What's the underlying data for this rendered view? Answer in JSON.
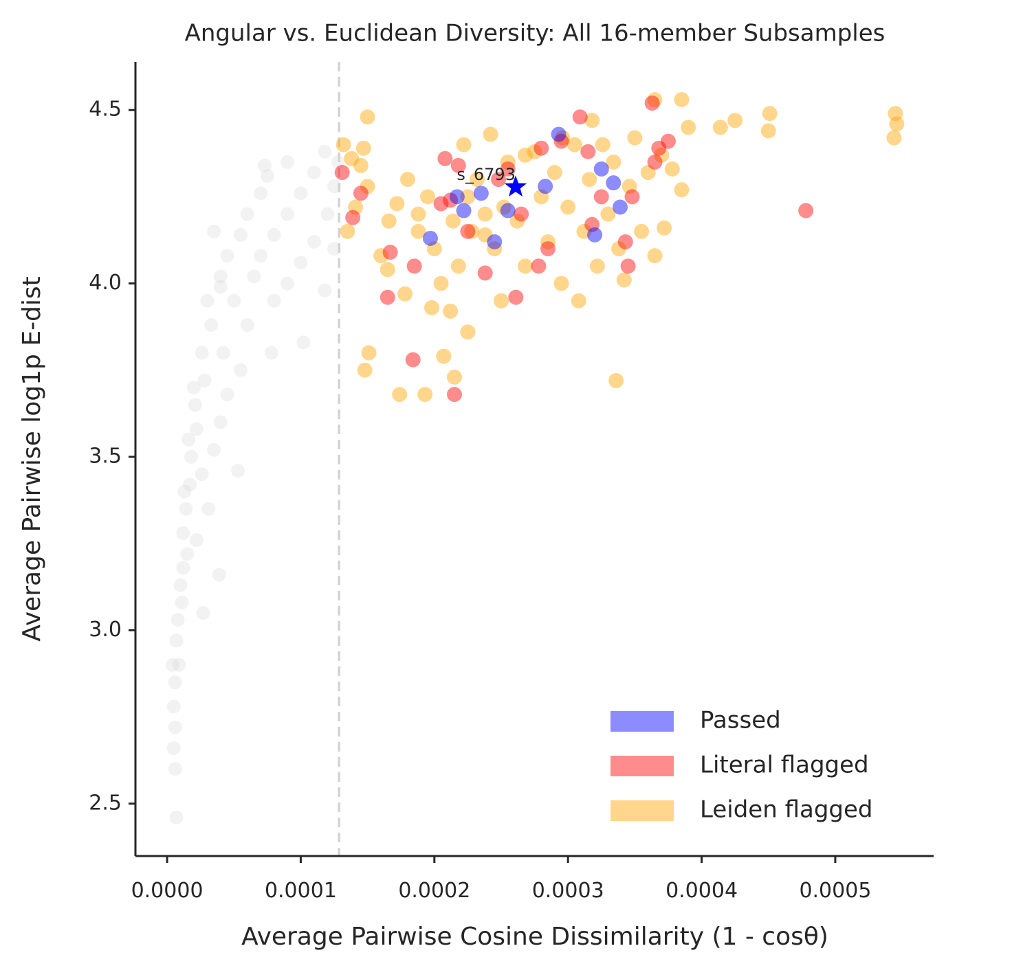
{
  "chart_data": {
    "type": "scatter",
    "title": "Angular vs. Euclidean Diversity: All 16-member Subsamples",
    "x_label": "Average Pairwise Cosine Dissimilarity (1 - cosθ)",
    "y_label": "Average Pairwise log1p E-dist",
    "xlim": [
      -2.37e-05,
      0.0005736
    ],
    "ylim": [
      2.349,
      4.639
    ],
    "xticks": [
      {
        "value": 0,
        "label": "0.0000"
      },
      {
        "value": 0.0001,
        "label": "0.0001"
      },
      {
        "value": 0.0002,
        "label": "0.0002"
      },
      {
        "value": 0.0003,
        "label": "0.0003"
      },
      {
        "value": 0.0004,
        "label": "0.0004"
      },
      {
        "value": 0.0005,
        "label": "0.0005"
      }
    ],
    "yticks": [
      2.5,
      {
        "value": 3.0,
        "label": "3.0"
      },
      3.5,
      {
        "value": 4.0,
        "label": "4.0"
      },
      4.5
    ],
    "threshold_x": 0.0001287,
    "legend_loc": "lower right",
    "series": [
      {
        "name": null,
        "color": "#d3d3d3",
        "x": [
          7e-06,
          6e-06,
          5e-06,
          6e-06,
          5e-06,
          6e-06,
          4e-06,
          9e-06,
          7e-06,
          8e-06,
          1.1e-05,
          2.7e-05,
          1e-05,
          1.2e-05,
          1.5e-05,
          3.9e-05,
          1.2e-05,
          2.2e-05,
          1.4e-05,
          3.1e-05,
          1.7e-05,
          2.6e-05,
          1.8e-05,
          3.5e-05,
          5.3e-05,
          2.2e-05,
          4e-05,
          2.1e-05,
          4.5e-05,
          2.8e-05,
          5.5e-05,
          2.6e-05,
          4.2e-05,
          7.8e-05,
          3.3e-05,
          6e-05,
          3e-05,
          5e-05,
          8e-05,
          0.000102,
          4e-05,
          6.5e-05,
          9e-05,
          0.000118,
          4.5e-05,
          7e-05,
          0.0001,
          5.5e-05,
          8e-05,
          0.00011,
          0.000125,
          6e-05,
          9e-05,
          0.00012,
          7e-05,
          0.0001,
          0.000125,
          7.5e-05,
          0.00011,
          0.000128,
          9e-05,
          0.000118,
          7.3e-05,
          3.5e-05,
          4e-05,
          2e-05,
          1.6e-05,
          1.3e-05
        ],
        "values": [
          2.46,
          2.6,
          2.66,
          2.72,
          2.78,
          2.85,
          2.9,
          2.9,
          2.97,
          3.03,
          3.08,
          3.05,
          3.13,
          3.18,
          3.22,
          3.16,
          3.28,
          3.26,
          3.35,
          3.35,
          3.42,
          3.45,
          3.5,
          3.52,
          3.46,
          3.58,
          3.6,
          3.65,
          3.68,
          3.72,
          3.75,
          3.8,
          3.8,
          3.8,
          3.88,
          3.88,
          3.95,
          3.95,
          3.95,
          3.83,
          4.02,
          4.02,
          4.0,
          3.98,
          4.08,
          4.08,
          4.06,
          4.14,
          4.14,
          4.12,
          4.1,
          4.2,
          4.2,
          4.2,
          4.26,
          4.26,
          4.28,
          4.31,
          4.32,
          4.35,
          4.35,
          4.38,
          4.34,
          4.15,
          3.99,
          3.7,
          3.55,
          3.4
        ]
      },
      {
        "name": "Leiden flagged",
        "color": "#ffa500",
        "x": [
          0.000451,
          0.00045,
          0.000545,
          0.000546,
          0.000544,
          0.000425,
          0.000414,
          0.00039,
          0.000385,
          0.000365,
          0.000336,
          0.000148,
          0.000151,
          0.000174,
          0.000193,
          0.000215,
          0.000207,
          0.000225,
          0.00015,
          0.000132,
          0.000138,
          0.000145,
          0.000147,
          0.000135,
          0.000141,
          0.00015,
          0.00016,
          0.000166,
          0.000172,
          0.00018,
          0.000188,
          0.000195,
          0.0002,
          0.000205,
          0.000212,
          0.000218,
          0.000222,
          0.000228,
          0.000232,
          0.000238,
          0.000242,
          0.000245,
          0.00025,
          0.000255,
          0.000262,
          0.000268,
          0.000275,
          0.00028,
          0.000285,
          0.00029,
          0.000295,
          0.0003,
          0.000305,
          0.000308,
          0.000312,
          0.000316,
          0.000322,
          0.000326,
          0.00033,
          0.000334,
          0.000338,
          0.000342,
          0.000346,
          0.00035,
          0.000355,
          0.00036,
          0.000365,
          0.00037,
          0.000372,
          0.000378,
          0.000385,
          0.000318,
          0.000296,
          0.000268,
          0.000188,
          0.000198,
          0.000178,
          0.000165,
          0.000225,
          0.000252,
          0.000214,
          0.000238
        ],
        "values": [
          4.49,
          4.44,
          4.49,
          4.46,
          4.42,
          4.47,
          4.45,
          4.45,
          4.53,
          4.53,
          3.72,
          3.75,
          3.8,
          3.68,
          3.68,
          3.73,
          3.79,
          3.86,
          4.48,
          4.4,
          4.36,
          4.34,
          4.39,
          4.15,
          4.22,
          4.28,
          4.08,
          4.18,
          4.23,
          4.3,
          4.15,
          4.25,
          4.1,
          4.0,
          3.92,
          4.05,
          4.4,
          4.15,
          4.3,
          4.2,
          4.43,
          4.1,
          3.95,
          4.35,
          4.18,
          4.05,
          4.38,
          4.25,
          4.12,
          4.32,
          4.0,
          4.22,
          4.4,
          3.95,
          4.15,
          4.3,
          4.05,
          4.4,
          4.2,
          4.35,
          4.1,
          4.01,
          4.28,
          4.42,
          4.15,
          4.32,
          4.08,
          4.37,
          4.16,
          4.33,
          4.27,
          4.47,
          4.42,
          4.37,
          4.2,
          3.93,
          3.97,
          4.04,
          4.25,
          4.22,
          4.18,
          4.14
        ]
      },
      {
        "name": "Literal flagged",
        "color": "#ff0000",
        "x": [
          0.000309,
          0.000363,
          0.000478,
          0.000375,
          0.000368,
          0.000165,
          0.000184,
          0.000215,
          0.000261,
          0.000145,
          0.000139,
          0.000131,
          0.000167,
          0.000185,
          0.000208,
          0.000212,
          0.000218,
          0.000225,
          0.000238,
          0.000255,
          0.000278,
          0.00028,
          0.000285,
          0.000295,
          0.000315,
          0.000318,
          0.000325,
          0.000345,
          0.000343,
          0.000348,
          0.000365,
          0.000205,
          0.000248,
          0.000265
        ],
        "values": [
          4.48,
          4.52,
          4.21,
          4.41,
          4.39,
          3.96,
          3.78,
          3.68,
          3.96,
          4.26,
          4.19,
          4.32,
          4.09,
          4.05,
          4.36,
          4.24,
          4.34,
          4.15,
          4.03,
          4.33,
          4.05,
          4.39,
          4.1,
          4.41,
          4.38,
          4.17,
          4.25,
          4.05,
          4.12,
          4.25,
          4.35,
          4.23,
          4.3,
          4.2
        ]
      },
      {
        "name": "Passed",
        "color": "#0000ff",
        "x": [
          0.000293,
          0.000339,
          0.000334,
          0.00032,
          0.000197,
          0.000217,
          0.000245,
          0.000255,
          0.000283,
          0.000222,
          0.000325,
          0.000235
        ],
        "values": [
          4.43,
          4.22,
          4.29,
          4.14,
          4.13,
          4.25,
          4.12,
          4.21,
          4.28,
          4.21,
          4.33,
          4.26
        ]
      }
    ],
    "highlight": {
      "label": "s_6793",
      "x": 0.0002608,
      "y": 4.278,
      "color": "#0000ff"
    }
  }
}
